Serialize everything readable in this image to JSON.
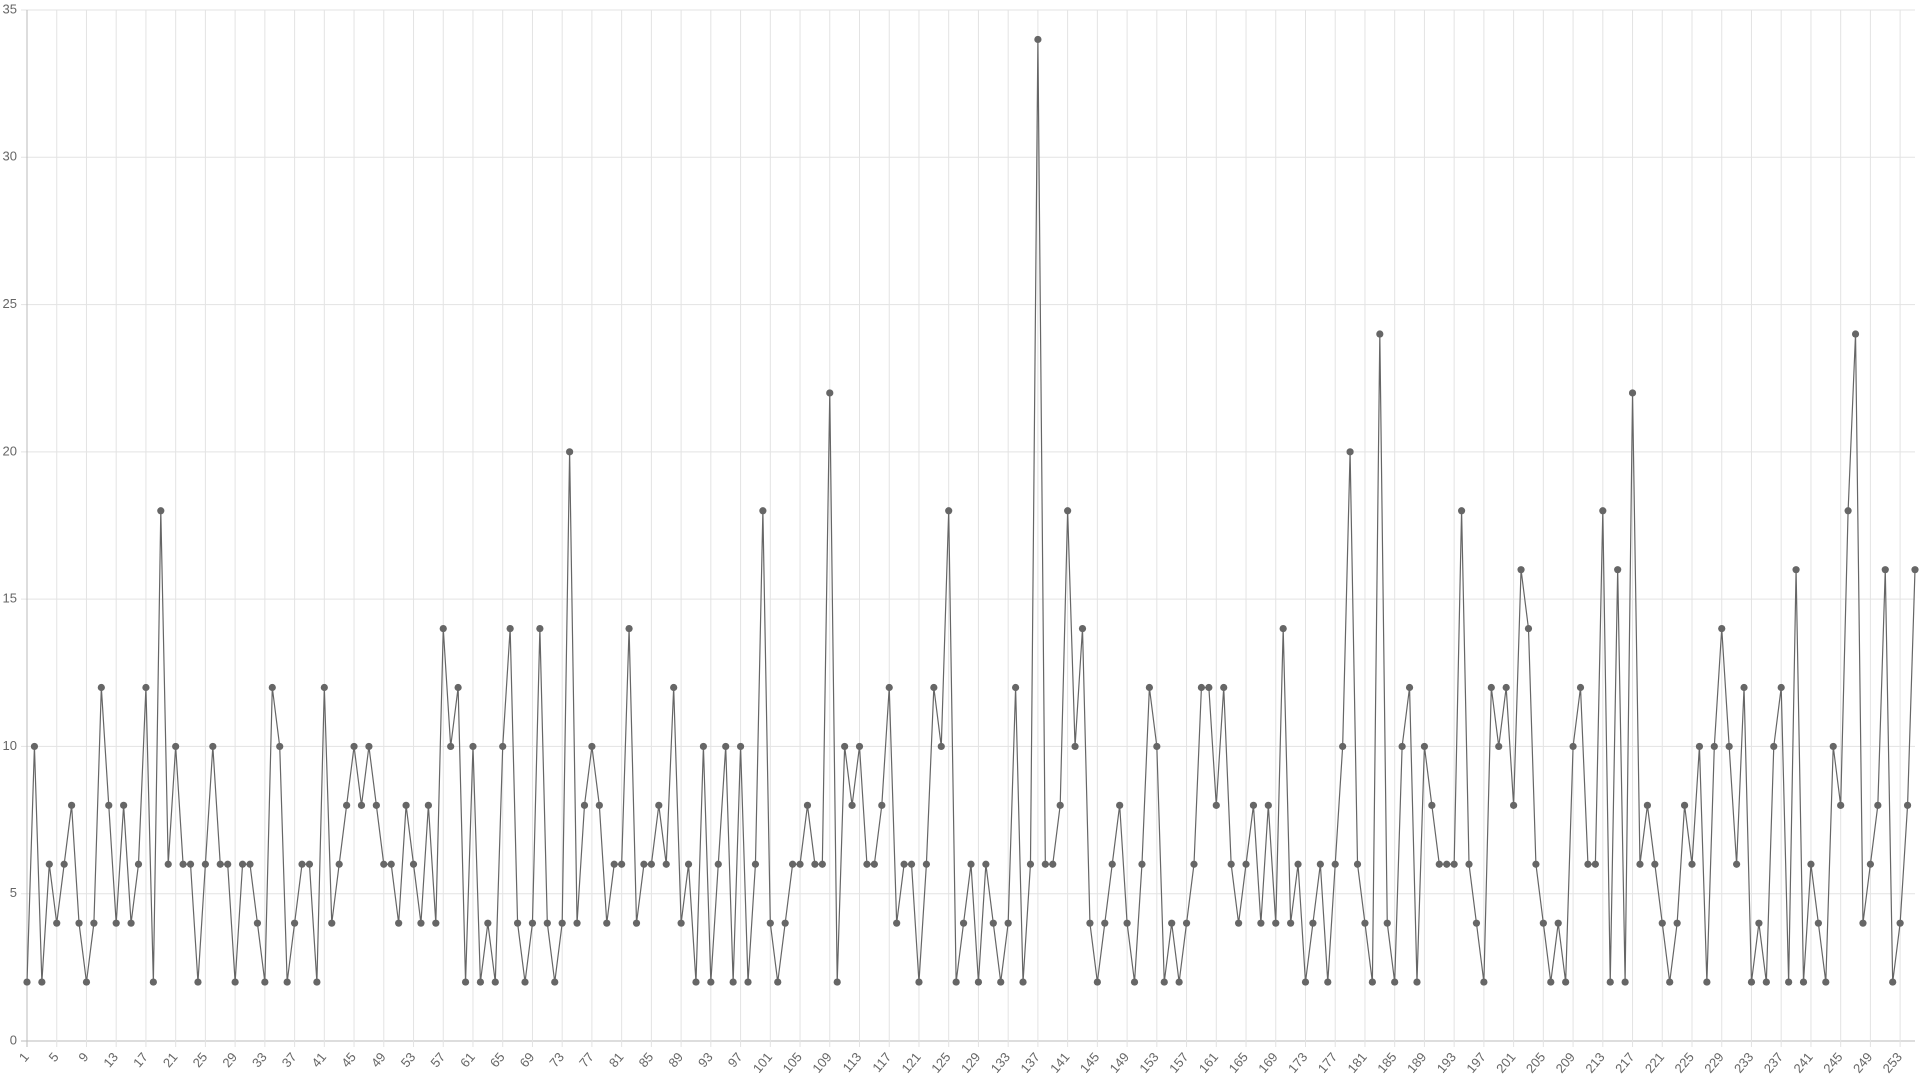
{
  "chart_data": {
    "type": "line",
    "color": "#666666",
    "grid": true,
    "categories": [
      "1",
      null,
      null,
      null,
      "5",
      null,
      null,
      null,
      "9",
      null,
      null,
      null,
      "13",
      null,
      null,
      null,
      "17",
      null,
      null,
      null,
      "21",
      null,
      null,
      null,
      "25",
      null,
      null,
      null,
      "29",
      null,
      null,
      null,
      "33",
      null,
      null,
      null,
      "37",
      null,
      null,
      null,
      "41",
      null,
      null,
      null,
      "45",
      null,
      null,
      null,
      "49",
      null,
      null,
      null,
      "53",
      null,
      null,
      null,
      "57",
      null,
      null,
      null,
      "61",
      null,
      null,
      null,
      "65",
      null,
      null,
      null,
      "69",
      null,
      null,
      null,
      "73",
      null,
      null,
      null,
      "77",
      null,
      null,
      null,
      "81",
      null,
      null,
      null,
      "85",
      null,
      null,
      null,
      "89",
      null,
      null,
      null,
      "93",
      null,
      null,
      null,
      "97",
      null,
      null,
      null,
      "101",
      null,
      null,
      null,
      "105",
      null,
      null,
      null,
      "109",
      null,
      null,
      null,
      "113",
      null,
      null,
      null,
      "117",
      null,
      null,
      null,
      "121",
      null,
      null,
      null,
      "125",
      null,
      null,
      null,
      "129",
      null,
      null,
      null,
      "133",
      null,
      null,
      null,
      "137",
      null,
      null,
      null,
      "141",
      null,
      null,
      null,
      "145",
      null,
      null,
      null,
      "149",
      null,
      null,
      null,
      "153",
      null,
      null,
      null,
      "157",
      null,
      null,
      null,
      "161",
      null,
      null,
      null,
      "165",
      null,
      null,
      null,
      "169",
      null,
      null,
      null,
      "173",
      null,
      null,
      null,
      "177",
      null,
      null,
      null,
      "181",
      null,
      null,
      null,
      "185",
      null,
      null,
      null,
      "189",
      null,
      null,
      null,
      "193",
      null,
      null,
      null,
      "197",
      null,
      null,
      null,
      "201",
      null,
      null,
      null,
      "205",
      null,
      null,
      null,
      "209",
      null,
      null,
      null,
      "213",
      null,
      null,
      null,
      "217",
      null,
      null,
      null,
      "221",
      null,
      null,
      null,
      "225",
      null,
      null,
      null,
      "229",
      null,
      null,
      null,
      "233",
      null,
      null,
      null,
      "237",
      null,
      null,
      null,
      "241",
      null,
      null,
      null,
      "245",
      null,
      null,
      null,
      "249",
      null,
      null,
      null,
      "253",
      null,
      null
    ],
    "values": [
      2,
      10,
      2,
      6,
      4,
      6,
      8,
      4,
      2,
      4,
      12,
      8,
      4,
      8,
      4,
      6,
      12,
      2,
      18,
      6,
      10,
      6,
      6,
      2,
      6,
      10,
      6,
      6,
      2,
      6,
      6,
      4,
      2,
      12,
      10,
      2,
      4,
      6,
      6,
      2,
      12,
      4,
      6,
      8,
      10,
      8,
      10,
      8,
      6,
      6,
      4,
      8,
      6,
      4,
      8,
      4,
      14,
      10,
      12,
      2,
      10,
      2,
      4,
      2,
      10,
      14,
      4,
      2,
      4,
      14,
      4,
      2,
      4,
      20,
      4,
      8,
      10,
      8,
      4,
      6,
      6,
      14,
      4,
      6,
      6,
      8,
      6,
      12,
      4,
      6,
      2,
      10,
      2,
      6,
      10,
      2,
      10,
      2,
      6,
      18,
      4,
      2,
      4,
      6,
      6,
      8,
      6,
      6,
      22,
      2,
      10,
      8,
      10,
      6,
      6,
      8,
      12,
      4,
      6,
      6,
      2,
      6,
      12,
      10,
      18,
      2,
      4,
      6,
      2,
      6,
      4,
      2,
      4,
      12,
      2,
      6,
      34,
      6,
      6,
      8,
      18,
      10,
      14,
      4,
      2,
      4,
      6,
      8,
      4,
      2,
      6,
      12,
      10,
      2,
      4,
      2,
      4,
      6,
      12,
      12,
      8,
      12,
      6,
      4,
      6,
      8,
      4,
      8,
      4,
      14,
      4,
      6,
      2,
      4,
      6,
      2,
      6,
      10,
      20,
      6,
      4,
      2,
      24,
      4,
      2,
      10,
      12,
      2,
      10,
      8,
      6,
      6,
      6,
      18,
      6,
      4,
      2,
      12,
      10,
      12,
      8,
      16,
      14,
      6,
      4,
      2,
      4,
      2,
      10,
      12,
      6,
      6,
      18,
      2,
      16,
      2,
      22,
      6,
      8,
      6,
      4,
      2,
      4,
      8,
      6,
      10,
      2,
      10,
      14,
      10,
      6,
      12,
      2,
      4,
      2,
      10,
      12,
      2,
      16,
      2,
      6,
      4,
      2,
      10,
      8,
      18,
      24,
      4,
      6,
      8,
      16,
      2,
      4,
      8,
      16
    ],
    "ylim": [
      0,
      35
    ],
    "yticks": [
      0,
      5,
      10,
      15,
      20,
      25,
      30,
      35
    ]
  }
}
